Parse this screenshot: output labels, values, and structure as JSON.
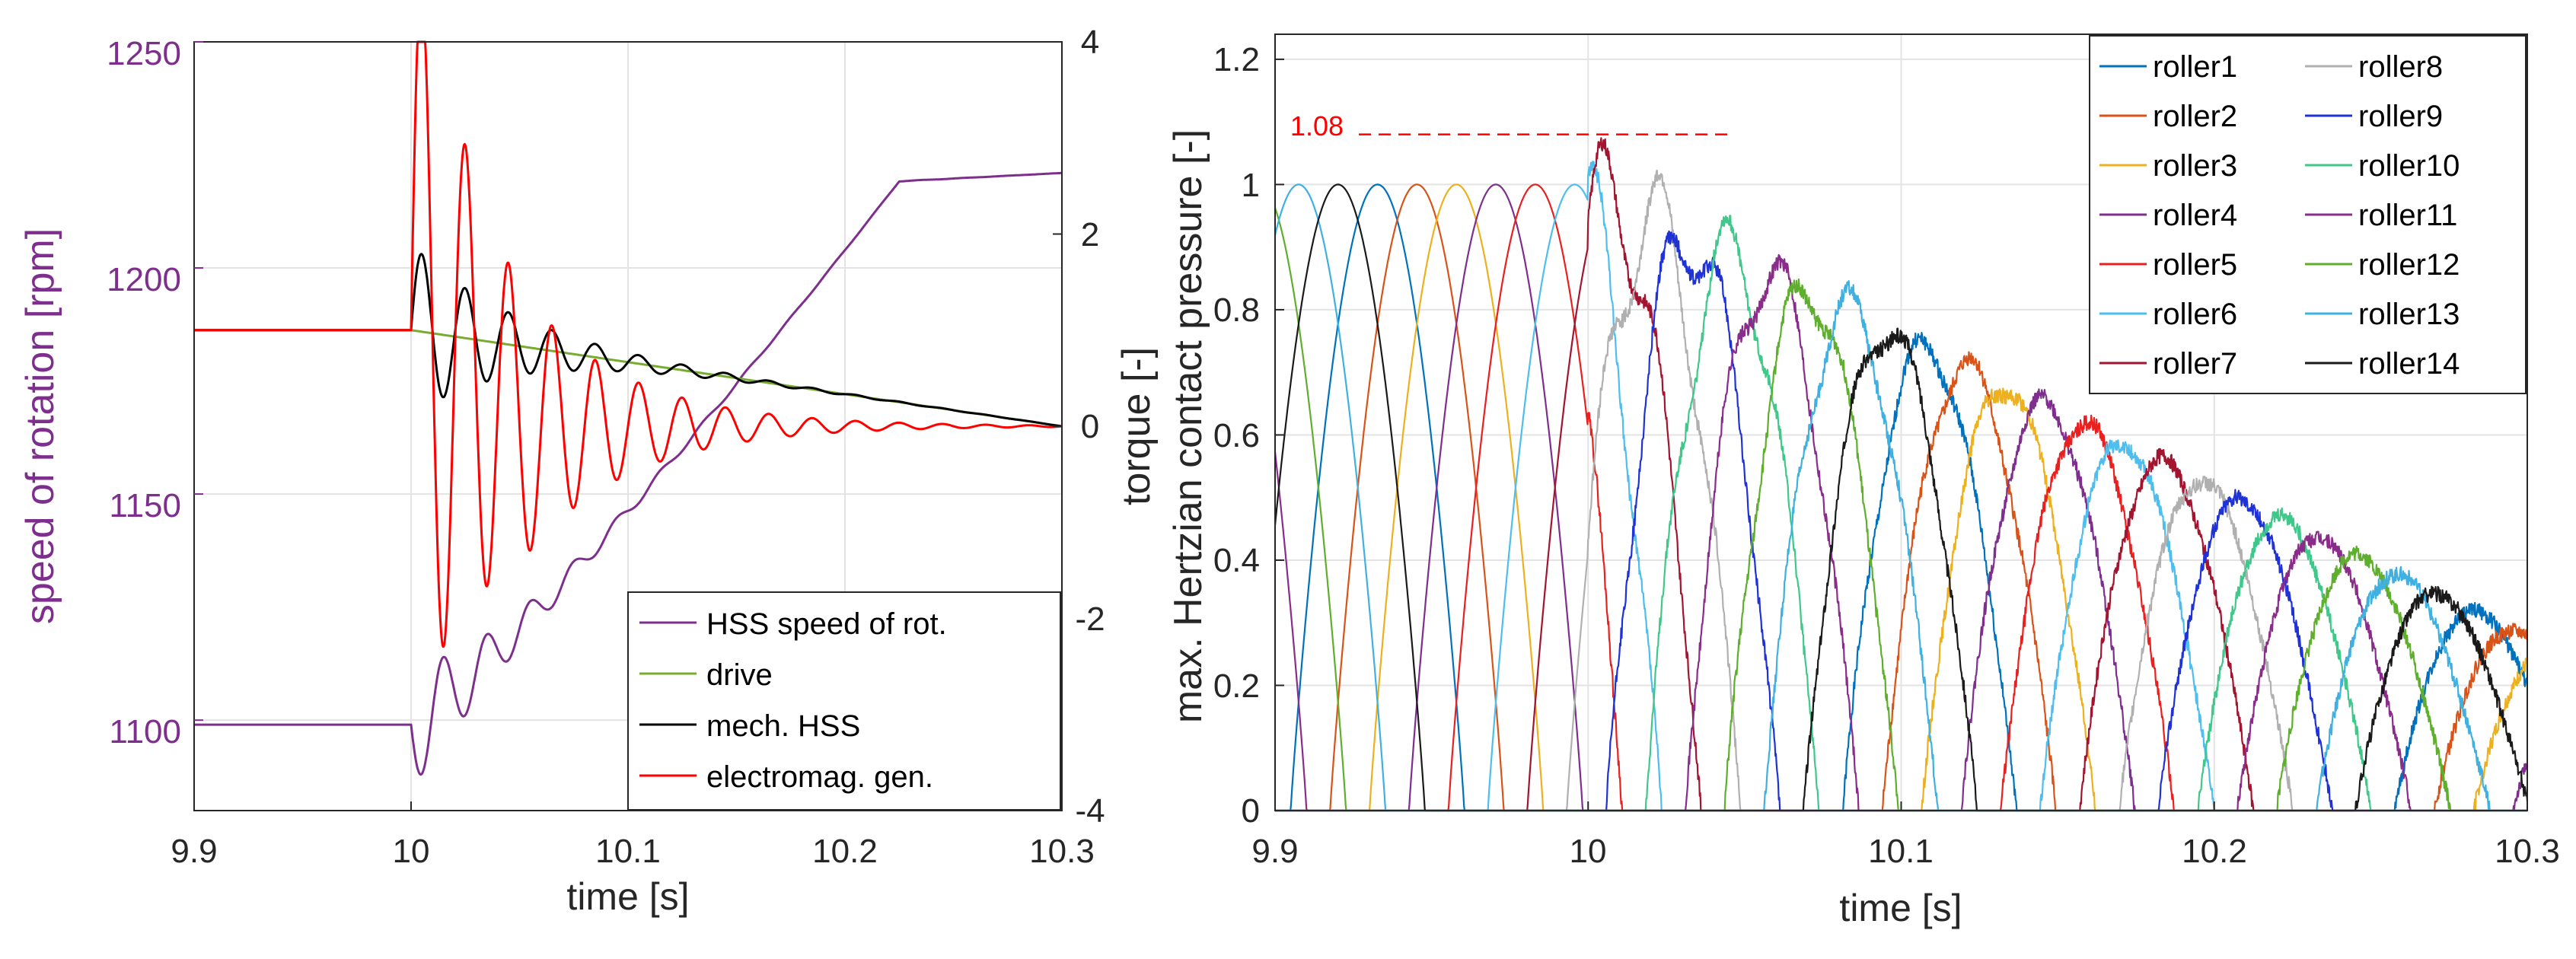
{
  "chart_data": [
    {
      "type": "line",
      "xlabel": "time [s]",
      "ylabel_left": "speed of rotation [rpm]",
      "ylabel_right": "torque [-]",
      "xlim": [
        9.9,
        10.3
      ],
      "ylim_left": [
        1080,
        1250
      ],
      "ylim_right": [
        -4,
        4
      ],
      "xticks": [
        "9.9",
        "10",
        "10.1",
        "10.2",
        "10.3"
      ],
      "yticks_left": [
        "1100",
        "1150",
        "1200",
        "1250"
      ],
      "yticks_right": [
        "-4",
        "-2",
        "0",
        "2",
        "4"
      ],
      "grid": true,
      "legend_position": "bottom-right",
      "colors": {
        "left_axis": "#7e2f8e",
        "hss": "#7e2f8e",
        "drive": "#77ac30",
        "mech": "#000000",
        "elec": "#ff0000"
      },
      "series": [
        {
          "name": "HSS speed of rot.",
          "axis": "left",
          "color": "#7e2f8e",
          "t_start": 10.0,
          "start_value": 1099,
          "end_value": 1221,
          "osc_amp": 14,
          "osc_freq": 50,
          "osc_decay": 25
        },
        {
          "name": "drive",
          "axis": "right",
          "color": "#77ac30",
          "t_start": 10.0,
          "start_value": 1.0,
          "end_value": 0.0
        },
        {
          "name": "mech. HSS",
          "axis": "right",
          "color": "#000000",
          "t_start": 10.0,
          "start_value": 1.0,
          "end_value": 0.0,
          "osc_amp": 0.9,
          "osc_freq": 50,
          "osc_decay": 22
        },
        {
          "name": "electromag. gen.",
          "axis": "right",
          "color": "#ff0000",
          "t_start": 10.0,
          "start_value": 1.0,
          "end_value": 0.0,
          "osc_amp": 4.1,
          "osc_freq": 50,
          "osc_decay": 21
        }
      ]
    },
    {
      "type": "line",
      "xlabel": "time [s]",
      "ylabel": "max. Hertzian contact pressure [-]",
      "xlim": [
        9.9,
        10.3
      ],
      "ylim": [
        0,
        1.24
      ],
      "xticks": [
        "9.9",
        "10",
        "10.1",
        "10.2",
        "10.3"
      ],
      "yticks": [
        "0",
        "0.2",
        "0.4",
        "0.6",
        "0.8",
        "1",
        "1.2"
      ],
      "grid": true,
      "legend_position": "top-right",
      "annotation": {
        "label": "1.08",
        "value": 1.08,
        "x_end": 10.045,
        "color": "#ff0000"
      },
      "roller_period": 0.0252,
      "series": [
        {
          "name": "roller1",
          "color": "#0072bd"
        },
        {
          "name": "roller2",
          "color": "#d95319"
        },
        {
          "name": "roller3",
          "color": "#edb120"
        },
        {
          "name": "roller4",
          "color": "#7e2f8e"
        },
        {
          "name": "roller5",
          "color": "#e8201f"
        },
        {
          "name": "roller6",
          "color": "#4dbeee"
        },
        {
          "name": "roller7",
          "color": "#a2142f"
        },
        {
          "name": "roller8",
          "color": "#b0b0b0"
        },
        {
          "name": "roller9",
          "color": "#1f32d6"
        },
        {
          "name": "roller10",
          "color": "#3fc88a"
        },
        {
          "name": "roller11",
          "color": "#8a2d8a"
        },
        {
          "name": "roller12",
          "color": "#5fae2e"
        },
        {
          "name": "roller13",
          "color": "#3fb0e0"
        },
        {
          "name": "roller14",
          "color": "#1a1a1a"
        }
      ]
    }
  ]
}
